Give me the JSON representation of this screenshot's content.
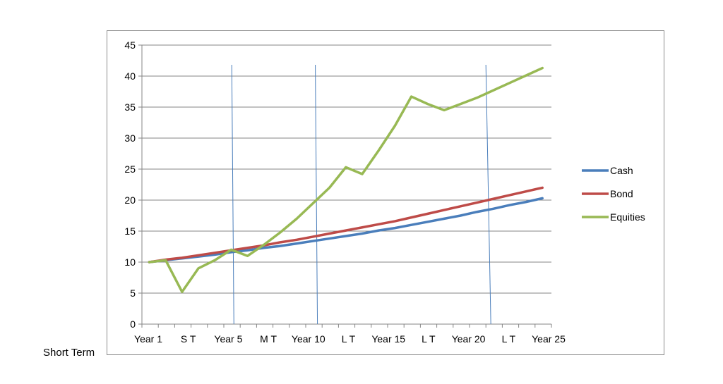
{
  "footnote": "Short Term",
  "chart_data": {
    "type": "line",
    "title": "",
    "xlabel": "",
    "ylabel": "",
    "ylim": [
      0,
      45
    ],
    "yticks": [
      0,
      5,
      10,
      15,
      20,
      25,
      30,
      35,
      40,
      45
    ],
    "grid": true,
    "legend_position": "right",
    "x": [
      1,
      2,
      3,
      4,
      5,
      6,
      7,
      8,
      9,
      10,
      11,
      12,
      13,
      14,
      15,
      16,
      17,
      18,
      19,
      20,
      21,
      22,
      23,
      24,
      25
    ],
    "xtick_labels": [
      "Year 1",
      "S T",
      "Year 5",
      "M T",
      "Year 10",
      "L T",
      "Year 15",
      "L T",
      "Year 20",
      "L T",
      "Year 25"
    ],
    "series": [
      {
        "name": "Cash",
        "color": "#4a7ebb",
        "values": [
          10.0,
          10.3,
          10.6,
          10.9,
          11.2,
          11.6,
          11.9,
          12.3,
          12.6,
          13.0,
          13.4,
          13.8,
          14.2,
          14.6,
          15.1,
          15.5,
          16.0,
          16.5,
          17.0,
          17.5,
          18.1,
          18.6,
          19.2,
          19.7,
          20.3
        ]
      },
      {
        "name": "Bond",
        "color": "#be4b48",
        "values": [
          10.0,
          10.4,
          10.7,
          11.1,
          11.5,
          11.9,
          12.3,
          12.7,
          13.2,
          13.6,
          14.1,
          14.6,
          15.1,
          15.6,
          16.1,
          16.6,
          17.2,
          17.8,
          18.4,
          19.0,
          19.6,
          20.2,
          20.8,
          21.4,
          22.0
        ]
      },
      {
        "name": "Equities",
        "color": "#98b954",
        "values": [
          10.0,
          10.3,
          5.2,
          9.0,
          10.3,
          12.0,
          11.0,
          12.8,
          14.8,
          17.0,
          19.5,
          22.0,
          25.3,
          24.2,
          28.0,
          32.0,
          36.7,
          35.5,
          34.5,
          35.5,
          36.5,
          37.7,
          38.9,
          40.1,
          41.3
        ]
      }
    ],
    "vertical_markers": [
      6.1,
      11.2,
      21.7
    ]
  }
}
